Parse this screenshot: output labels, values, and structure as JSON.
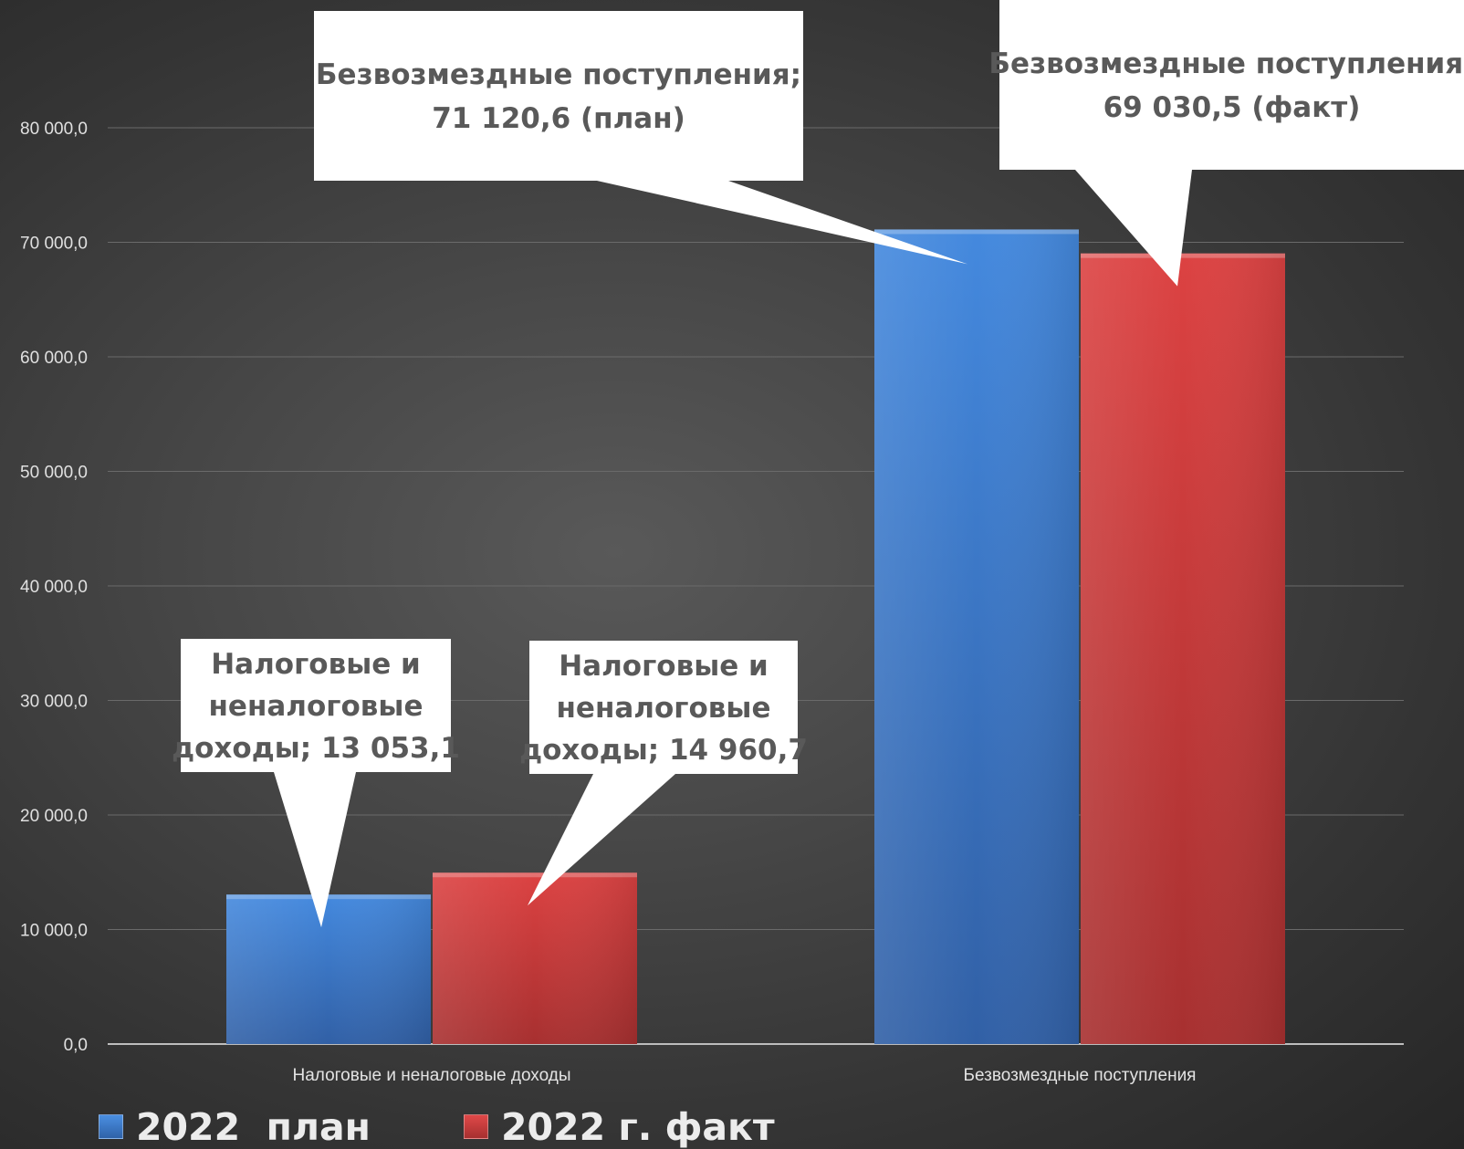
{
  "chart_data": {
    "type": "bar",
    "categories": [
      "Налоговые и неналоговые доходы",
      "Безвозмездные поступления"
    ],
    "series": [
      {
        "name": "2022  план",
        "values": [
          13053.1,
          71120.6
        ],
        "color": "#3f83d8"
      },
      {
        "name": "2022 г. факт",
        "values": [
          14960.7,
          69030.5
        ],
        "color": "#d64040"
      }
    ],
    "ylim": [
      0,
      80000
    ],
    "yticks": [
      "0,0",
      "10 000,0",
      "20 000,0",
      "30 000,0",
      "40 000,0",
      "50 000,0",
      "60 000,0",
      "70 000,0",
      "80 000,0"
    ],
    "grid": true,
    "legend_position": "bottom-left",
    "callouts": [
      {
        "lines": [
          "Налоговые и",
          "неналоговые",
          "доходы; 13 053,1"
        ]
      },
      {
        "lines": [
          "Налоговые и",
          "неналоговые",
          "доходы; 14 960,7"
        ]
      },
      {
        "lines": [
          "Безвозмездные поступления;",
          "71 120,6 (план)"
        ]
      },
      {
        "lines": [
          "Безвозмездные поступления;",
          "69 030,5 (факт)"
        ]
      }
    ]
  }
}
